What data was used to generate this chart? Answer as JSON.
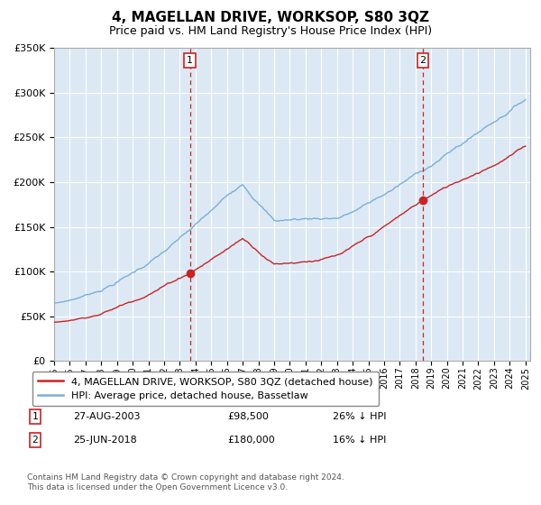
{
  "title": "4, MAGELLAN DRIVE, WORKSOP, S80 3QZ",
  "subtitle": "Price paid vs. HM Land Registry's House Price Index (HPI)",
  "bg_color": "#dce9f5",
  "hpi_color": "#7bafd4",
  "price_color": "#cc2222",
  "vline_color": "#cc2222",
  "legend_line1": "4, MAGELLAN DRIVE, WORKSOP, S80 3QZ (detached house)",
  "legend_line2": "HPI: Average price, detached house, Bassetlaw",
  "footnote": "Contains HM Land Registry data © Crown copyright and database right 2024.\nThis data is licensed under the Open Government Licence v3.0.",
  "ylabel_ticks": [
    "£0",
    "£50K",
    "£100K",
    "£150K",
    "£200K",
    "£250K",
    "£300K",
    "£350K"
  ],
  "ylabel_vals": [
    0,
    50000,
    100000,
    150000,
    200000,
    250000,
    300000,
    350000
  ],
  "xlabels": [
    "1995",
    "1996",
    "1997",
    "1998",
    "1999",
    "2000",
    "2001",
    "2002",
    "2003",
    "2004",
    "2005",
    "2006",
    "2007",
    "2008",
    "2009",
    "2010",
    "2011",
    "2012",
    "2013",
    "2014",
    "2015",
    "2016",
    "2017",
    "2018",
    "2019",
    "2020",
    "2021",
    "2022",
    "2023",
    "2024",
    "2025"
  ],
  "yr1": 2003.65,
  "yr2": 2018.48,
  "price1": 98500,
  "price2": 180000,
  "date_str1": "27-AUG-2003",
  "date_str2": "25-JUN-2018",
  "pct1": "26% ↓ HPI",
  "pct2": "16% ↓ HPI"
}
